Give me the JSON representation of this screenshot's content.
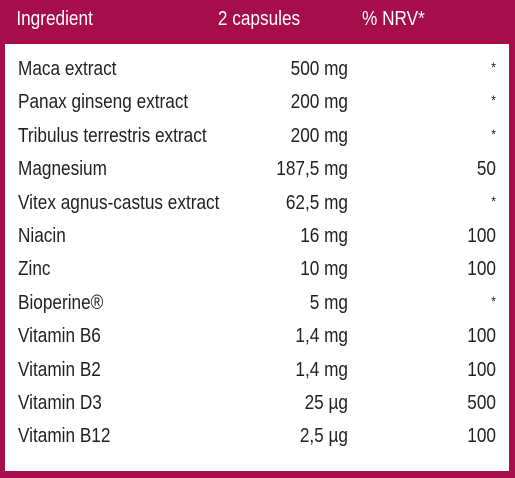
{
  "table": {
    "header": {
      "ingredient": "Ingredient",
      "amount": "2 capsules",
      "nrv": "% NRV*"
    },
    "rows": [
      {
        "ingredient": "Maca extract",
        "amount": "500 mg",
        "nrv": "*"
      },
      {
        "ingredient": "Panax ginseng extract",
        "amount": "200 mg",
        "nrv": "*"
      },
      {
        "ingredient": "Tribulus terrestris extract",
        "amount": "200 mg",
        "nrv": "*"
      },
      {
        "ingredient": "Magnesium",
        "amount": "187,5 mg",
        "nrv": "50"
      },
      {
        "ingredient": "Vitex agnus-castus extract",
        "amount": "62,5 mg",
        "nrv": "*"
      },
      {
        "ingredient": "Niacin",
        "amount": "16 mg",
        "nrv": "100"
      },
      {
        "ingredient": "Zinc",
        "amount": "10 mg",
        "nrv": "100"
      },
      {
        "ingredient": "Bioperine®",
        "amount": "5 mg",
        "nrv": "*"
      },
      {
        "ingredient": "Vitamin B6",
        "amount": "1,4 mg",
        "nrv": "100"
      },
      {
        "ingredient": "Vitamin B2",
        "amount": "1,4 mg",
        "nrv": "100"
      },
      {
        "ingredient": "Vitamin D3",
        "amount": "25 µg",
        "nrv": "500"
      },
      {
        "ingredient": "Vitamin B12",
        "amount": "2,5 µg",
        "nrv": "100"
      }
    ]
  },
  "colors": {
    "brand": "#a50d4b",
    "text": "#231f20",
    "header_text": "#ffffff"
  }
}
